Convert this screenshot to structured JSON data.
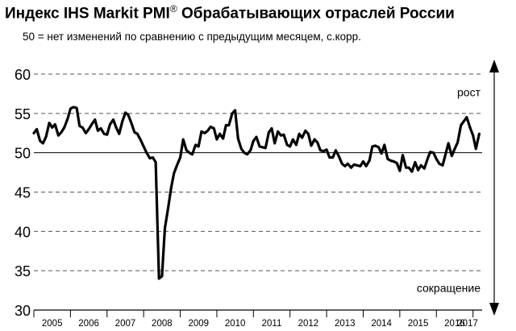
{
  "chart_data": {
    "type": "line",
    "title": "Индекс IHS Markit PMI",
    "title_sup": "®",
    "title_rest": " Обрабатывающих отраслей России",
    "subtitle": "50 = нет изменений по сравнению с предыдущим месяцем, с.корр.",
    "ylim": [
      30,
      60
    ],
    "yticks": [
      "30",
      "35",
      "40",
      "45",
      "50",
      "55",
      "60"
    ],
    "xlim": [
      2005.0,
      2017.25
    ],
    "xticks": [
      "2005",
      "2006",
      "2007",
      "2008",
      "2009",
      "2010",
      "2011",
      "2012",
      "2013",
      "2014",
      "2015",
      "2016",
      "2017"
    ],
    "grid": "horizontal-dashed",
    "reference_line": 50,
    "annotation_up": "рост",
    "annotation_down": "сокращение",
    "series": [
      {
        "color": "#000000",
        "x": [
          2005.0,
          2005.08,
          2005.17,
          2005.25,
          2005.33,
          2005.42,
          2005.5,
          2005.58,
          2005.67,
          2005.75,
          2005.83,
          2005.92,
          2006.0,
          2006.08,
          2006.17,
          2006.25,
          2006.33,
          2006.42,
          2006.5,
          2006.58,
          2006.67,
          2006.75,
          2006.83,
          2006.92,
          2007.0,
          2007.08,
          2007.17,
          2007.25,
          2007.33,
          2007.42,
          2007.5,
          2007.58,
          2007.67,
          2007.75,
          2007.83,
          2007.92,
          2008.0,
          2008.08,
          2008.17,
          2008.25,
          2008.33,
          2008.42,
          2008.5,
          2008.58,
          2008.67,
          2008.75,
          2008.83,
          2008.92,
          2009.0,
          2009.08,
          2009.17,
          2009.25,
          2009.33,
          2009.42,
          2009.5,
          2009.58,
          2009.67,
          2009.75,
          2009.83,
          2009.92,
          2010.0,
          2010.08,
          2010.17,
          2010.25,
          2010.33,
          2010.42,
          2010.5,
          2010.58,
          2010.67,
          2010.75,
          2010.83,
          2010.92,
          2011.0,
          2011.08,
          2011.17,
          2011.25,
          2011.33,
          2011.42,
          2011.5,
          2011.58,
          2011.67,
          2011.75,
          2011.83,
          2011.92,
          2012.0,
          2012.08,
          2012.17,
          2012.25,
          2012.33,
          2012.42,
          2012.5,
          2012.58,
          2012.67,
          2012.75,
          2012.83,
          2012.92,
          2013.0,
          2013.08,
          2013.17,
          2013.25,
          2013.33,
          2013.42,
          2013.5,
          2013.58,
          2013.67,
          2013.75,
          2013.83,
          2013.92,
          2014.0,
          2014.08,
          2014.17,
          2014.25,
          2014.33,
          2014.42,
          2014.5,
          2014.58,
          2014.67,
          2014.75,
          2014.83,
          2014.92,
          2015.0,
          2015.08,
          2015.17,
          2015.25,
          2015.33,
          2015.42,
          2015.5,
          2015.58,
          2015.67,
          2015.75,
          2015.83,
          2015.92,
          2016.0,
          2016.08,
          2016.17,
          2016.25,
          2016.33,
          2016.42,
          2016.5,
          2016.58,
          2016.67,
          2016.75,
          2016.83,
          2016.92,
          2017.0,
          2017.08,
          2017.17
        ],
        "y": [
          52.5,
          53.0,
          51.5,
          51.2,
          52.0,
          53.8,
          53.2,
          53.6,
          52.2,
          52.6,
          53.2,
          54.3,
          55.6,
          55.8,
          55.7,
          53.4,
          53.2,
          52.5,
          53.0,
          53.6,
          54.2,
          52.8,
          53.1,
          52.4,
          52.3,
          53.6,
          54.2,
          53.2,
          52.4,
          54.0,
          55.1,
          54.8,
          53.7,
          52.6,
          52.4,
          51.6,
          50.8,
          50.0,
          49.3,
          49.4,
          48.8,
          34.0,
          34.3,
          40.4,
          43.0,
          45.5,
          47.4,
          48.5,
          49.4,
          51.7,
          50.3,
          50.0,
          49.8,
          51.0,
          50.8,
          52.7,
          52.5,
          52.8,
          53.3,
          53.1,
          51.7,
          52.4,
          51.8,
          53.5,
          53.5,
          55.0,
          55.4,
          51.8,
          50.5,
          50.0,
          49.8,
          50.3,
          51.5,
          52.0,
          50.8,
          50.7,
          50.6,
          52.6,
          53.1,
          51.2,
          52.7,
          52.2,
          52.3,
          51.0,
          50.8,
          51.7,
          51.0,
          52.4,
          51.9,
          52.8,
          52.4,
          50.9,
          51.7,
          51.3,
          50.3,
          50.2,
          50.4,
          49.4,
          49.4,
          50.3,
          49.6,
          48.6,
          48.3,
          48.6,
          48.1,
          48.5,
          48.4,
          48.3,
          48.9,
          48.3,
          49.0,
          50.8,
          50.9,
          50.7,
          49.9,
          51.0,
          49.2,
          49.0,
          48.9,
          48.7,
          47.7,
          49.7,
          48.1,
          48.1,
          47.6,
          48.8,
          47.8,
          48.4,
          48.0,
          49.1,
          50.1,
          50.0,
          49.2,
          48.6,
          48.4,
          49.8,
          51.2,
          49.6,
          50.5,
          51.3,
          53.5,
          54.0,
          54.5,
          53.2,
          52.2,
          50.5,
          52.4
        ]
      }
    ]
  }
}
